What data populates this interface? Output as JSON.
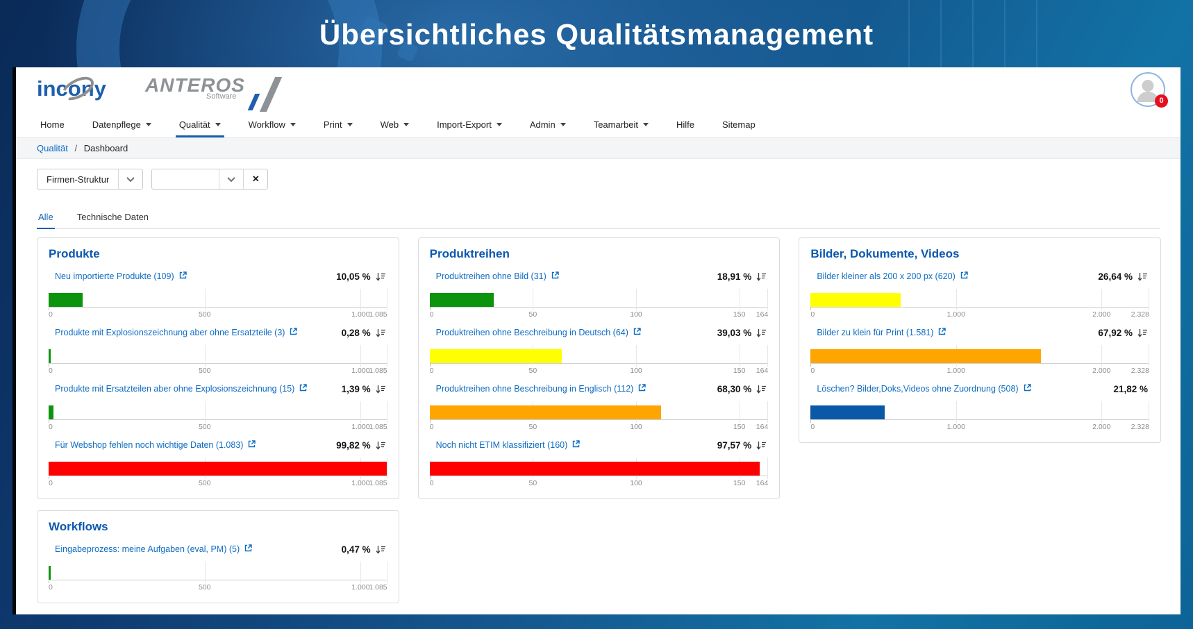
{
  "banner": {
    "title": "Übersichtliches Qualitätsmanagement"
  },
  "header": {
    "logo_incony": "incony",
    "logo_anteros": "ANTEROS",
    "logo_anteros_sub": "Software",
    "user_badge_count": "0"
  },
  "nav": {
    "items": [
      {
        "label": "Home",
        "dropdown": false,
        "active": false
      },
      {
        "label": "Datenpflege",
        "dropdown": true,
        "active": false
      },
      {
        "label": "Qualität",
        "dropdown": true,
        "active": true
      },
      {
        "label": "Workflow",
        "dropdown": true,
        "active": false
      },
      {
        "label": "Print",
        "dropdown": true,
        "active": false
      },
      {
        "label": "Web",
        "dropdown": true,
        "active": false
      },
      {
        "label": "Import-Export",
        "dropdown": true,
        "active": false
      },
      {
        "label": "Admin",
        "dropdown": true,
        "active": false
      },
      {
        "label": "Teamarbeit",
        "dropdown": true,
        "active": false
      },
      {
        "label": "Hilfe",
        "dropdown": false,
        "active": false
      },
      {
        "label": "Sitemap",
        "dropdown": false,
        "active": false
      }
    ]
  },
  "breadcrumb": {
    "section": "Qualität",
    "separator": "/",
    "page": "Dashboard"
  },
  "filters": {
    "scope_select_value": "Firmen-Struktur",
    "search_select_value": "",
    "clear_button": "✕"
  },
  "tabs": [
    {
      "label": "Alle",
      "active": true
    },
    {
      "label": "Technische Daten",
      "active": false
    }
  ],
  "colors": {
    "accent_blue": "#1261ad",
    "link_blue": "#0e6cc2",
    "title_blue": "#0a58b0",
    "bar_green": "#0c940c",
    "bar_yellow": "#ffff00",
    "bar_orange": "#ffa500",
    "bar_red": "#ff0000",
    "bar_blue": "#0a58a8",
    "badge_red": "#e60f1e"
  },
  "chart_data": [
    {
      "type": "bar",
      "title": "Produkte",
      "axis_max": 1085,
      "grid": true,
      "ticks": [
        {
          "label": "0",
          "value": 0
        },
        {
          "label": "500",
          "value": 500
        },
        {
          "label": "1.000",
          "value": 1000
        },
        {
          "label": "1.085",
          "value": 1085
        }
      ],
      "rows": [
        {
          "label": "Neu importierte Produkte (109)",
          "count": 109,
          "pct": 10.05,
          "pct_label": "10,05 %",
          "color": "#0c940c",
          "sortable": true
        },
        {
          "label": "Produkte mit Explosionszeichnung aber ohne Ersatzteile (3)",
          "count": 3,
          "pct": 0.28,
          "pct_label": "0,28 %",
          "color": "#0c940c",
          "sortable": true
        },
        {
          "label": "Produkte mit Ersatzteilen aber ohne Explosionszeichnung (15)",
          "count": 15,
          "pct": 1.39,
          "pct_label": "1,39 %",
          "color": "#0c940c",
          "sortable": true
        },
        {
          "label": "Für Webshop fehlen noch wichtige Daten (1.083)",
          "count": 1083,
          "pct": 99.82,
          "pct_label": "99,82 %",
          "color": "#ff0000",
          "sortable": true
        }
      ]
    },
    {
      "type": "bar",
      "title": "Produktreihen",
      "axis_max": 164,
      "grid": true,
      "ticks": [
        {
          "label": "0",
          "value": 0
        },
        {
          "label": "50",
          "value": 50
        },
        {
          "label": "100",
          "value": 100
        },
        {
          "label": "150",
          "value": 150
        },
        {
          "label": "164",
          "value": 164
        }
      ],
      "rows": [
        {
          "label": "Produktreihen ohne Bild (31)",
          "count": 31,
          "pct": 18.91,
          "pct_label": "18,91 %",
          "color": "#0c940c",
          "sortable": true
        },
        {
          "label": "Produktreihen ohne Beschreibung in Deutsch (64)",
          "count": 64,
          "pct": 39.03,
          "pct_label": "39,03 %",
          "color": "#ffff00",
          "sortable": true
        },
        {
          "label": "Produktreihen ohne Beschreibung in Englisch (112)",
          "count": 112,
          "pct": 68.3,
          "pct_label": "68,30 %",
          "color": "#ffa500",
          "sortable": true
        },
        {
          "label": "Noch nicht ETIM klassifiziert (160)",
          "count": 160,
          "pct": 97.57,
          "pct_label": "97,57 %",
          "color": "#ff0000",
          "sortable": true
        }
      ]
    },
    {
      "type": "bar",
      "title": "Bilder, Dokumente, Videos",
      "axis_max": 2328,
      "grid": true,
      "ticks": [
        {
          "label": "0",
          "value": 0
        },
        {
          "label": "1.000",
          "value": 1000
        },
        {
          "label": "2.000",
          "value": 2000
        },
        {
          "label": "2.328",
          "value": 2328
        }
      ],
      "rows": [
        {
          "label": "Bilder kleiner als 200 x 200 px (620)",
          "count": 620,
          "pct": 26.64,
          "pct_label": "26,64 %",
          "color": "#ffff00",
          "sortable": true
        },
        {
          "label": "Bilder zu klein für Print (1.581)",
          "count": 1581,
          "pct": 67.92,
          "pct_label": "67,92 %",
          "color": "#ffa500",
          "sortable": true
        },
        {
          "label": "Löschen? Bilder,Doks,Videos ohne Zuordnung (508)",
          "count": 508,
          "pct": 21.82,
          "pct_label": "21,82 %",
          "color": "#0a58a8",
          "sortable": false
        }
      ]
    },
    {
      "type": "bar",
      "title": "Workflows",
      "axis_max": 1085,
      "grid": true,
      "ticks": [
        {
          "label": "0",
          "value": 0
        },
        {
          "label": "500",
          "value": 500
        },
        {
          "label": "1.000",
          "value": 1000
        },
        {
          "label": "1.085",
          "value": 1085
        }
      ],
      "rows": [
        {
          "label": "Eingabeprozess: meine Aufgaben (eval, PM) (5)",
          "count": 5,
          "pct": 0.47,
          "pct_label": "0,47 %",
          "color": "#0c940c",
          "sortable": true
        }
      ]
    }
  ]
}
